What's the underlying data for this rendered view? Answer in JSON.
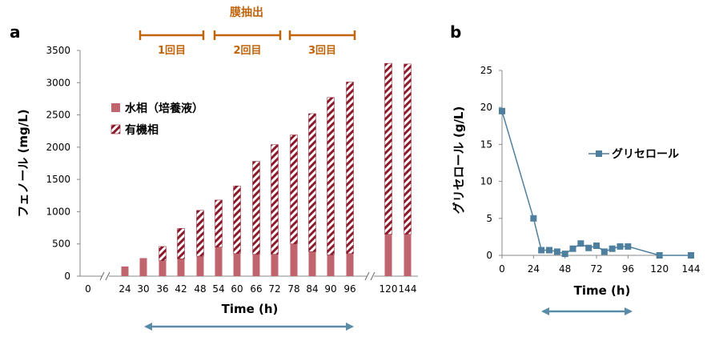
{
  "panel_a_label": "a",
  "panel_b_label": "b",
  "membrane_title": "膜抽出",
  "stages": [
    "1回目",
    "2回目",
    "3回目"
  ],
  "chart_data": [
    {
      "type": "bar",
      "stacked": true,
      "categories": [
        "0",
        "24",
        "30",
        "36",
        "42",
        "48",
        "54",
        "60",
        "66",
        "72",
        "78",
        "84",
        "90",
        "96",
        "120",
        "144"
      ],
      "axis_break_after": [
        "0",
        "96"
      ],
      "series": [
        {
          "name": "水相（培養液）",
          "color": "#c0646e",
          "pattern": "solid",
          "values": [
            0,
            150,
            280,
            240,
            270,
            310,
            450,
            350,
            340,
            340,
            500,
            380,
            330,
            350,
            650,
            650
          ]
        },
        {
          "name": "有機相",
          "color": "#8b1a2a",
          "pattern": "diagonal-hatch",
          "values": [
            0,
            0,
            0,
            220,
            470,
            710,
            730,
            1050,
            1440,
            1700,
            1690,
            2140,
            2440,
            2660,
            2650,
            2640
          ]
        }
      ],
      "xlabel": "Time (h)",
      "ylabel": "フェノール (mg/L)",
      "ylim": [
        0,
        3500
      ],
      "yticks": [
        0,
        500,
        1000,
        1500,
        2000,
        2500,
        3000,
        3500
      ],
      "grid": false,
      "legend": "upper-left inside"
    },
    {
      "type": "line",
      "x": [
        0,
        24,
        30,
        36,
        42,
        48,
        54,
        60,
        66,
        72,
        78,
        84,
        90,
        96,
        120,
        144
      ],
      "series": [
        {
          "name": "グリセロール",
          "color": "#4f7f9f",
          "values": [
            19.5,
            5.0,
            0.7,
            0.7,
            0.5,
            0.2,
            0.9,
            1.6,
            1.0,
            1.3,
            0.5,
            0.9,
            1.2,
            1.2,
            0.0,
            0.0
          ]
        }
      ],
      "xlabel": "Time (h)",
      "ylabel": "グリセロール (g/L)",
      "xticks": [
        0,
        24,
        48,
        72,
        96,
        120,
        144
      ],
      "xlim": [
        0,
        144
      ],
      "ylim": [
        0,
        25
      ],
      "yticks": [
        0,
        5,
        10,
        15,
        20,
        25
      ],
      "grid": false,
      "legend": "right"
    }
  ]
}
